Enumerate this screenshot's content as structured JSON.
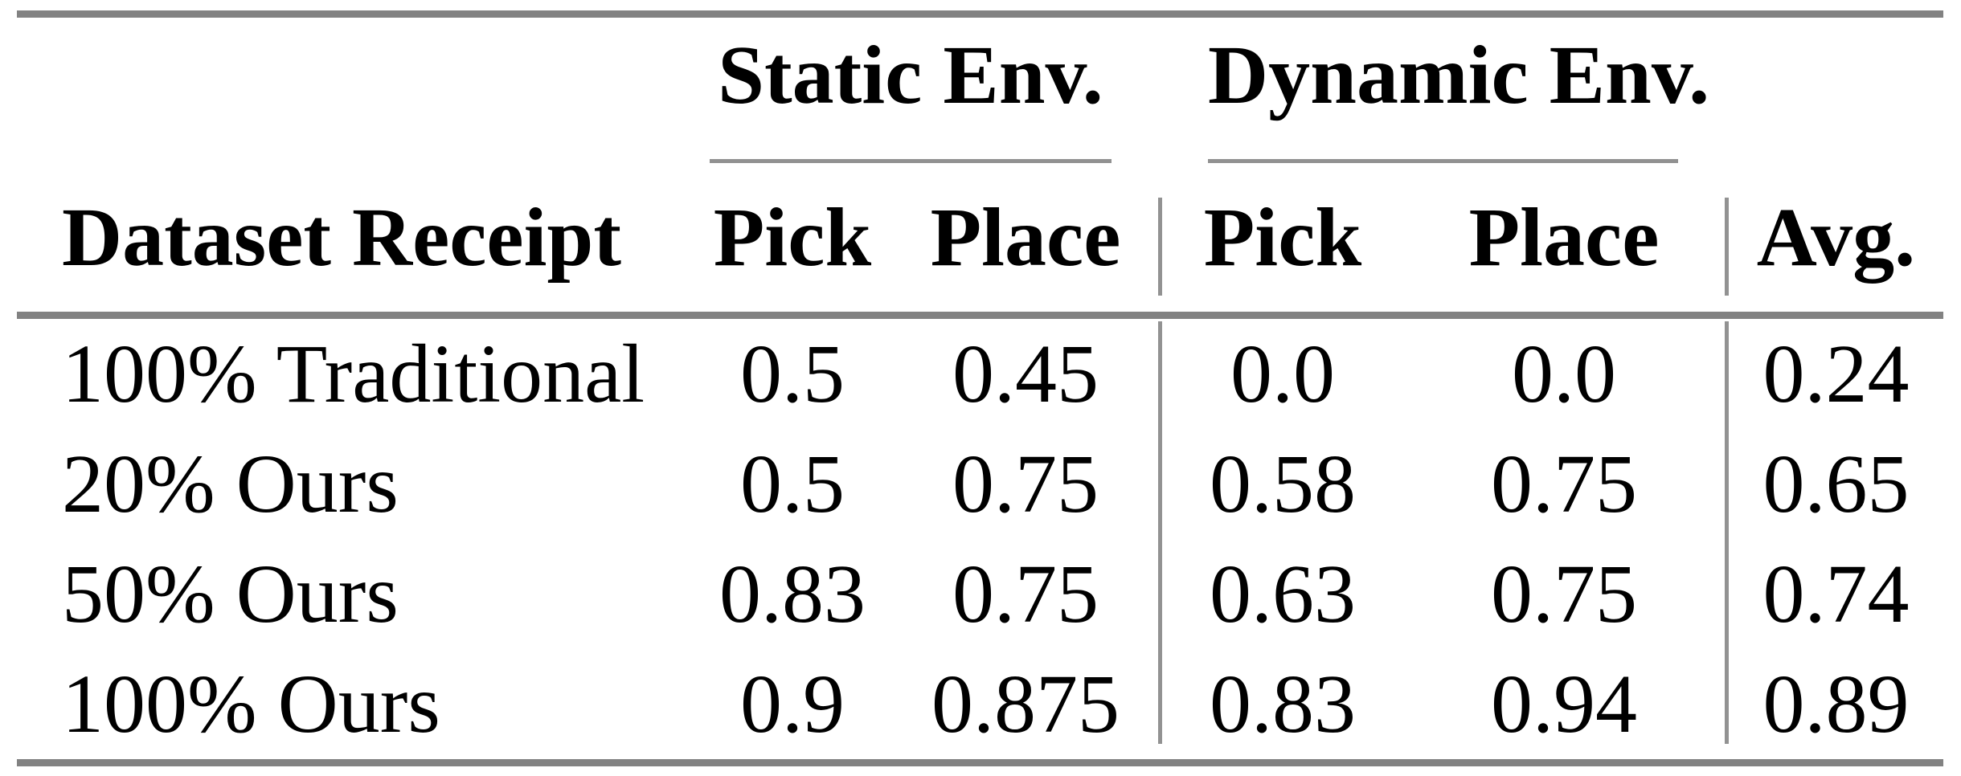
{
  "table": {
    "group_headers": {
      "static": "Static Env.",
      "dynamic": "Dynamic Env."
    },
    "columns": {
      "label": "Dataset Receipt",
      "static_pick": "Pick",
      "static_place": "Place",
      "dynamic_pick": "Pick",
      "dynamic_place": "Place",
      "avg": "Avg."
    },
    "rows": [
      {
        "label": "100% Traditional",
        "static_pick": "0.5",
        "static_place": "0.45",
        "dynamic_pick": "0.0",
        "dynamic_place": "0.0",
        "avg": "0.24"
      },
      {
        "label": "20% Ours",
        "static_pick": "0.5",
        "static_place": "0.75",
        "dynamic_pick": "0.58",
        "dynamic_place": "0.75",
        "avg": "0.65"
      },
      {
        "label": "50% Ours",
        "static_pick": "0.83",
        "static_place": "0.75",
        "dynamic_pick": "0.63",
        "dynamic_place": "0.75",
        "avg": "0.74"
      },
      {
        "label": "100% Ours",
        "static_pick": "0.9",
        "static_place": "0.875",
        "dynamic_pick": "0.83",
        "dynamic_place": "0.94",
        "avg": "0.89"
      }
    ],
    "colors": {
      "text": "#000000",
      "background": "#ffffff",
      "rule_thick": "#828282",
      "rule_thin": "#929292"
    }
  }
}
